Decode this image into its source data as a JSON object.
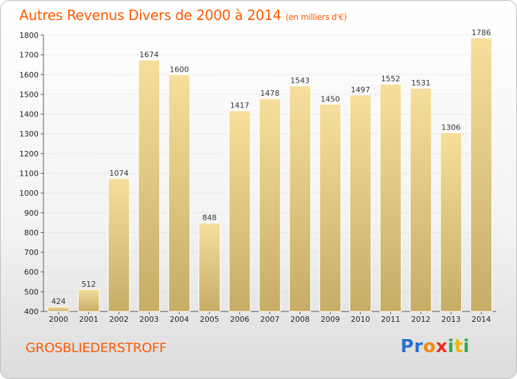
{
  "header": {
    "title": "Autres Revenus Divers de 2000 à 2014",
    "unit": "(en milliers d'€)"
  },
  "footer": {
    "commune": "GROSBLIEDERSTROFF",
    "logo_letters": [
      {
        "ch": "P",
        "color": "#2a6fd6"
      },
      {
        "ch": "r",
        "color": "#2a6fd6"
      },
      {
        "ch": "o",
        "color": "#f08a00"
      },
      {
        "ch": "x",
        "color": "#ee2a2a"
      },
      {
        "ch": "i",
        "color": "#2fa84f"
      },
      {
        "ch": "t",
        "color": "#f0b400"
      },
      {
        "ch": "i",
        "color": "#2fa84f"
      }
    ]
  },
  "colors": {
    "accent": "#ff5a00",
    "bar_top": "#f6df9c",
    "bar_bottom": "#c7ac66",
    "bar_edge": "#ffffff"
  },
  "chart_data": {
    "type": "bar",
    "categories": [
      "2000",
      "2001",
      "2002",
      "2003",
      "2004",
      "2005",
      "2006",
      "2007",
      "2008",
      "2009",
      "2010",
      "2011",
      "2012",
      "2013",
      "2014"
    ],
    "values": [
      424,
      512,
      1074,
      1674,
      1600,
      848,
      1417,
      1478,
      1543,
      1450,
      1497,
      1552,
      1531,
      1306,
      1786
    ],
    "title": "Autres Revenus Divers de 2000 à 2014",
    "ylim": [
      400,
      1800
    ],
    "yticks": [
      400,
      500,
      600,
      700,
      800,
      900,
      1000,
      1100,
      1200,
      1300,
      1400,
      1500,
      1600,
      1700,
      1800
    ],
    "grid": true,
    "legend": "none"
  }
}
